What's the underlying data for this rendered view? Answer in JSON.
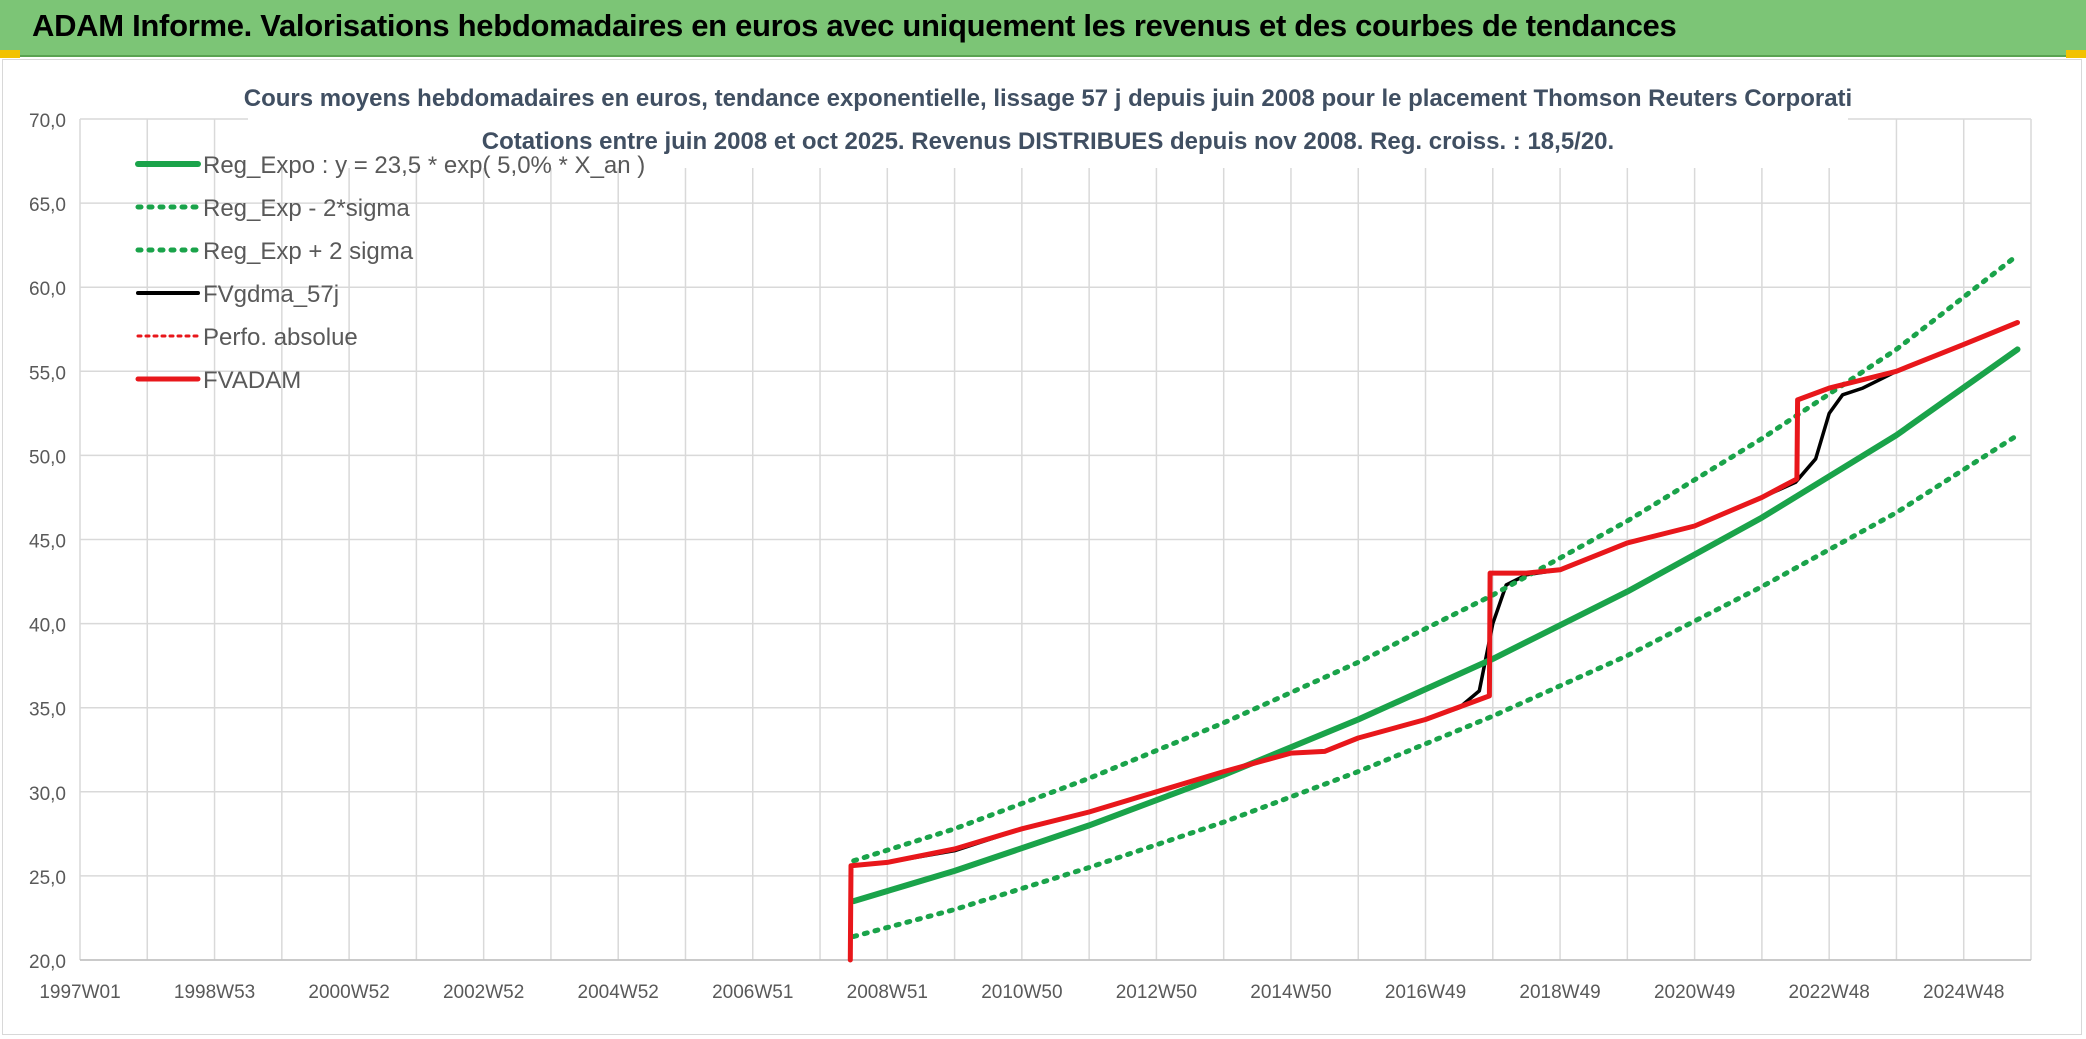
{
  "banner": {
    "title": "ADAM Informe. Valorisations hebdomadaires en euros avec uniquement les revenus et des courbes de tendances"
  },
  "colors": {
    "banner_bg": "#7cc576",
    "trend_green": "#1aa34a",
    "fvadam_red": "#e8171b",
    "fvgdma_black": "#000000",
    "grid": "#d9d9d9"
  },
  "chart_data": {
    "type": "line",
    "title": "Cours moyens hebdomadaires en euros, tendance exponentielle, lissage 57 j depuis juin 2008 pour le placement Thomson Reuters Corporati",
    "subtitle": "Cotations entre juin 2008 et oct 2025. Revenus DISTRIBUES depuis nov 2008. Reg. croiss. : 18,5/20.",
    "xlabel": "",
    "ylabel": "",
    "x_range": [
      1997.0,
      2026.0
    ],
    "ylim": [
      20,
      70
    ],
    "yticks": [
      "20,0",
      "25,0",
      "30,0",
      "35,0",
      "40,0",
      "45,0",
      "50,0",
      "55,0",
      "60,0",
      "65,0",
      "70,0"
    ],
    "xtick_labels": [
      "1997W01",
      "1998W53",
      "2000W52",
      "2002W52",
      "2004W52",
      "2006W51",
      "2008W51",
      "2010W50",
      "2012W50",
      "2014W50",
      "2016W49",
      "2018W49",
      "2020W49",
      "2022W48",
      "2024W48"
    ],
    "grid": true,
    "legend_position": "top-left",
    "legend": [
      {
        "label": "Reg_Expo : y = 23,5 * exp( 5,0% *  X_an )",
        "color": "#1aa34a",
        "style": "solid"
      },
      {
        "label": "Reg_Exp - 2*sigma",
        "color": "#1aa34a",
        "style": "dotted"
      },
      {
        "label": "Reg_Exp + 2 sigma",
        "color": "#1aa34a",
        "style": "dotted"
      },
      {
        "label": "FVgdma_57j",
        "color": "#000000",
        "style": "solid"
      },
      {
        "label": "Perfo. absolue",
        "color": "#e8171b",
        "style": "dotted"
      },
      {
        "label": "FVADAM",
        "color": "#e8171b",
        "style": "solid"
      }
    ],
    "series": [
      {
        "name": "Reg_Expo : y = 23,5 * exp( 5,0% *  X_an )",
        "x": [
          2008.5,
          2010.0,
          2012.0,
          2014.0,
          2016.0,
          2018.0,
          2020.0,
          2022.0,
          2024.0,
          2025.8
        ],
        "values": [
          23.5,
          25.3,
          28.0,
          31.0,
          34.3,
          37.9,
          41.9,
          46.3,
          51.2,
          56.3
        ]
      },
      {
        "name": "Reg_Exp - 2*sigma",
        "x": [
          2008.5,
          2010.0,
          2012.0,
          2014.0,
          2016.0,
          2018.0,
          2020.0,
          2022.0,
          2024.0,
          2025.8
        ],
        "values": [
          21.4,
          23.0,
          25.5,
          28.2,
          31.2,
          34.5,
          38.1,
          42.2,
          46.6,
          51.2
        ]
      },
      {
        "name": "Reg_Exp + 2 sigma",
        "x": [
          2008.5,
          2010.0,
          2012.0,
          2014.0,
          2016.0,
          2018.0,
          2020.0,
          2022.0,
          2024.0,
          2025.8
        ],
        "values": [
          25.9,
          27.8,
          30.8,
          34.1,
          37.7,
          41.7,
          46.1,
          51.0,
          56.3,
          61.9
        ]
      },
      {
        "name": "FVgdma_57j",
        "x": [
          2008.5,
          2009.0,
          2010.0,
          2011.0,
          2012.0,
          2013.0,
          2014.0,
          2015.0,
          2015.5,
          2016.0,
          2017.0,
          2017.5,
          2017.8,
          2018.0,
          2018.2,
          2018.5,
          2019.0,
          2020.0,
          2021.0,
          2022.0,
          2022.5,
          2022.8,
          2023.0,
          2023.2,
          2023.5,
          2024.0,
          2025.0,
          2025.8
        ],
        "values": [
          25.6,
          25.8,
          26.5,
          27.8,
          28.8,
          30.0,
          31.2,
          32.3,
          32.4,
          33.2,
          34.3,
          35.0,
          36.0,
          40.0,
          42.3,
          42.9,
          43.2,
          44.8,
          45.8,
          47.5,
          48.4,
          49.8,
          52.5,
          53.6,
          54.0,
          55.0,
          56.6,
          57.9
        ]
      },
      {
        "name": "FVADAM",
        "x": [
          2008.45,
          2008.46,
          2009.0,
          2010.0,
          2011.0,
          2012.0,
          2013.0,
          2014.0,
          2015.0,
          2015.5,
          2016.0,
          2017.0,
          2017.95,
          2017.96,
          2018.5,
          2019.0,
          2020.0,
          2021.0,
          2022.0,
          2022.52,
          2022.53,
          2023.0,
          2024.0,
          2025.0,
          2025.8
        ],
        "values": [
          20.0,
          25.6,
          25.8,
          26.6,
          27.8,
          28.8,
          30.0,
          31.2,
          32.3,
          32.4,
          33.2,
          34.3,
          35.7,
          43.0,
          43.0,
          43.2,
          44.8,
          45.8,
          47.5,
          48.6,
          53.3,
          54.0,
          55.0,
          56.6,
          57.9
        ]
      }
    ]
  }
}
